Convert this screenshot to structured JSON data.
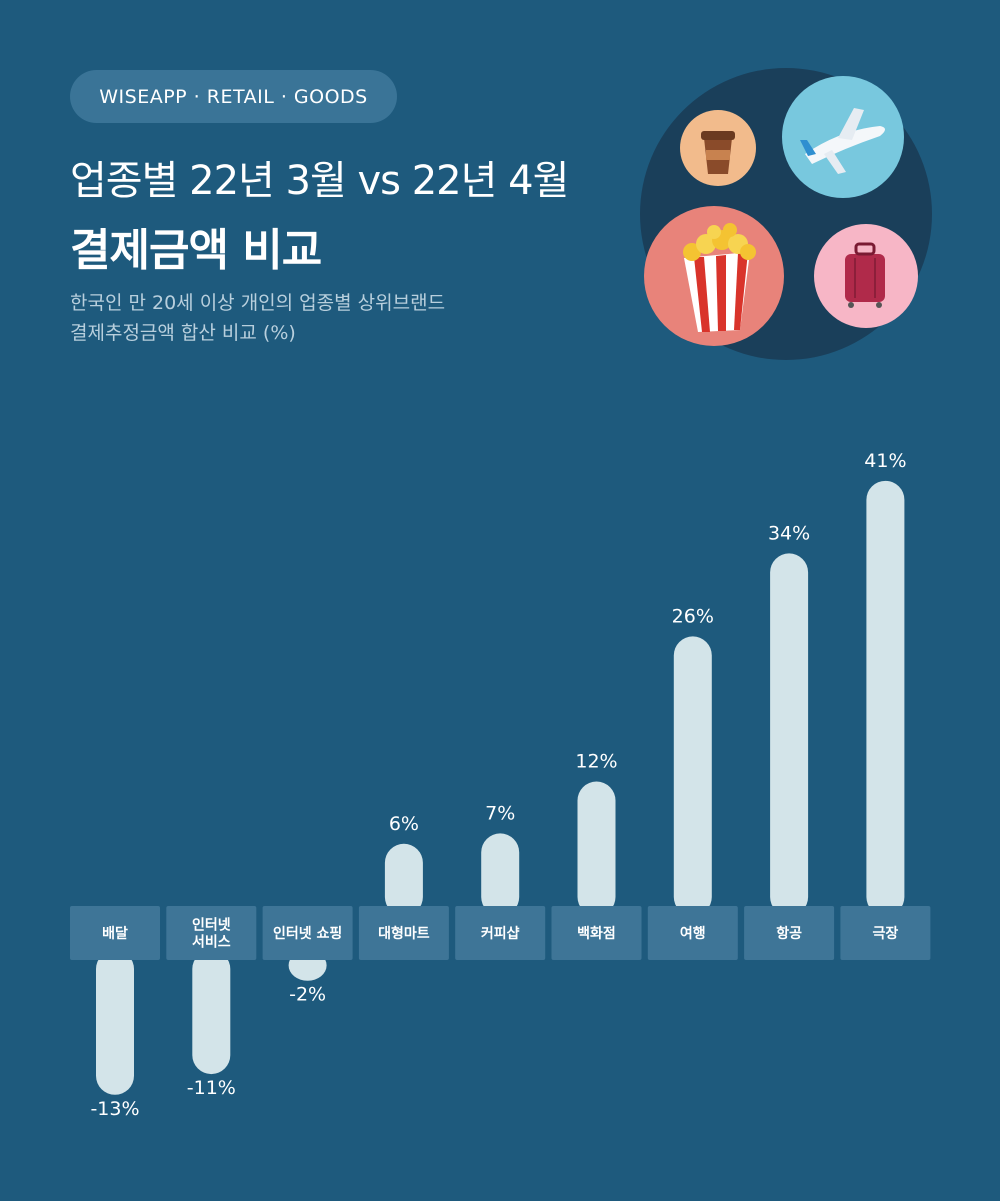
{
  "header": {
    "tag": "WISEAPP · RETAIL · GOODS",
    "title_line1": "업종별 22년 3월 vs 22년 4월",
    "title_line2": "결제금액 비교",
    "subtitle_line1": "한국인 만 20세 이상 개인의 업종별 상위브랜드",
    "subtitle_line2": "결제추정금액 합산 비교 (%)"
  },
  "illustration": {
    "icons": [
      "coffee-cup-icon",
      "airplane-icon",
      "popcorn-icon",
      "suitcase-icon"
    ],
    "colors": {
      "circle_bg": "#1a3f5a",
      "coffee_bg": "#f2bb8c",
      "airplane_bg": "#78c8de",
      "popcorn_bg": "#e8837a",
      "suitcase_bg": "#f7b6c6"
    }
  },
  "colors": {
    "background": "#1e5a7d",
    "bar": "#d3e4e9",
    "label_box": "#3e7597",
    "text": "#ffffff"
  },
  "chart_data": {
    "type": "bar",
    "categories": [
      "배달",
      "인터넷\n서비스",
      "인터넷 쇼핑",
      "대형마트",
      "커피샵",
      "백화점",
      "여행",
      "항공",
      "극장"
    ],
    "values": [
      -13,
      -11,
      -2,
      6,
      7,
      12,
      26,
      34,
      41
    ],
    "value_labels": [
      "-13%",
      "-11%",
      "-2%",
      "6%",
      "7%",
      "12%",
      "26%",
      "34%",
      "41%"
    ],
    "unit": "%",
    "title": "",
    "xlabel": "",
    "ylabel": "",
    "grid": false
  }
}
